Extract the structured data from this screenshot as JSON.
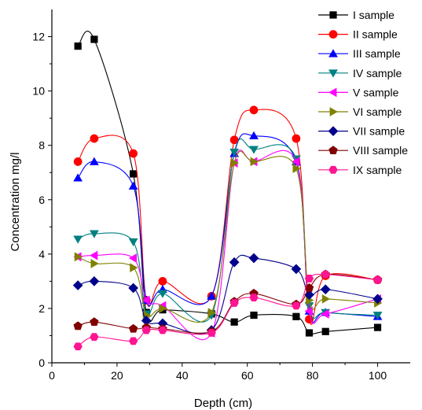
{
  "chart_data": {
    "type": "scatter",
    "xlabel": "Depth (cm)",
    "ylabel": "Concentration mg/l",
    "xlim": [
      0,
      110
    ],
    "ylim": [
      0,
      13
    ],
    "x_ticks": [
      "0",
      "20",
      "40",
      "60",
      "80",
      "100"
    ],
    "y_ticks": [
      "0",
      "2",
      "4",
      "6",
      "8",
      "10",
      "12"
    ],
    "grid": false,
    "legend_position": "top-right",
    "x": [
      8,
      13,
      25,
      29,
      34,
      49,
      56,
      62,
      75,
      79,
      84,
      100
    ],
    "series": [
      {
        "name": "I sample",
        "color": "#000000",
        "marker": "square",
        "values": [
          11.65,
          11.9,
          6.95,
          1.85,
          1.95,
          1.8,
          1.5,
          1.75,
          1.7,
          1.1,
          1.15,
          1.3
        ]
      },
      {
        "name": "II sample",
        "color": "#ff0000",
        "marker": "circle",
        "values": [
          7.4,
          8.25,
          7.7,
          2.3,
          3.0,
          2.45,
          8.2,
          9.3,
          8.25,
          1.6,
          3.2,
          3.05
        ]
      },
      {
        "name": "III sample",
        "color": "#0000ff",
        "marker": "triangle-up",
        "values": [
          6.8,
          7.4,
          6.5,
          2.3,
          2.7,
          2.45,
          7.7,
          8.35,
          7.4,
          1.9,
          1.85,
          1.7
        ]
      },
      {
        "name": "IV sample",
        "color": "#008080",
        "marker": "triangle-down",
        "values": [
          4.55,
          4.75,
          4.45,
          1.8,
          2.55,
          1.75,
          7.75,
          7.85,
          7.5,
          2.1,
          1.85,
          1.75
        ]
      },
      {
        "name": "V sample",
        "color": "#ff00ff",
        "marker": "triangle-left",
        "values": [
          3.9,
          3.95,
          3.85,
          2.3,
          2.1,
          1.1,
          7.35,
          7.4,
          7.4,
          1.9,
          1.8,
          2.35
        ]
      },
      {
        "name": "VI sample",
        "color": "#808000",
        "marker": "triangle-right",
        "values": [
          3.9,
          3.65,
          3.5,
          1.75,
          2.0,
          1.85,
          7.35,
          7.4,
          7.15,
          2.3,
          2.35,
          2.2
        ]
      },
      {
        "name": "VII sample",
        "color": "#00008b",
        "marker": "diamond",
        "values": [
          2.85,
          3.0,
          2.75,
          1.55,
          1.45,
          1.2,
          3.7,
          3.85,
          3.45,
          2.5,
          2.7,
          2.35
        ]
      },
      {
        "name": "VIII sample",
        "color": "#800000",
        "marker": "pentagon",
        "values": [
          1.35,
          1.5,
          1.25,
          1.3,
          1.25,
          1.15,
          2.25,
          2.55,
          2.15,
          2.75,
          3.25,
          3.05
        ]
      },
      {
        "name": "IX sample",
        "color": "#ff1493",
        "marker": "hexagon",
        "values": [
          0.6,
          0.95,
          0.8,
          1.2,
          1.2,
          1.1,
          2.2,
          2.4,
          2.1,
          3.1,
          3.25,
          3.05
        ]
      }
    ]
  }
}
